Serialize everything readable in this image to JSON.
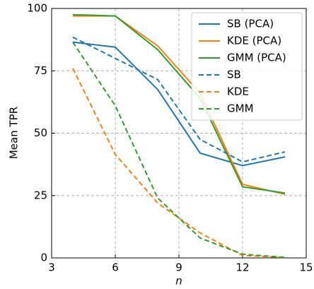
{
  "chart_data": {
    "type": "line",
    "xlabel": "n",
    "ylabel": "Mean TPR",
    "x": [
      4,
      6,
      8,
      10,
      12,
      14
    ],
    "series": [
      {
        "name": "SB (PCA)",
        "color": "#1f77b4",
        "linestyle": "solid",
        "values": [
          86.5,
          84.5,
          67.5,
          42,
          37,
          40.5
        ]
      },
      {
        "name": "KDE (PCA)",
        "color": "#ff7f0e",
        "linestyle": "solid",
        "values": [
          97,
          97,
          85,
          66,
          29.5,
          25.5
        ]
      },
      {
        "name": "GMM (PCA)",
        "color": "#2ca02c",
        "linestyle": "solid",
        "values": [
          97.5,
          97,
          83.5,
          64,
          28.5,
          26
        ]
      },
      {
        "name": "SB",
        "color": "#1f77b4",
        "linestyle": "dashed",
        "values": [
          88.5,
          80,
          71.5,
          47.5,
          38.5,
          42.5
        ]
      },
      {
        "name": "KDE",
        "color": "#ff7f0e",
        "linestyle": "dashed",
        "values": [
          76,
          41.5,
          22,
          10,
          1,
          0.2
        ]
      },
      {
        "name": "GMM",
        "color": "#2ca02c",
        "linestyle": "dashed",
        "values": [
          86.5,
          61,
          24,
          8,
          1.5,
          0.2
        ]
      }
    ],
    "xlim": [
      3,
      15
    ],
    "xticks": [
      3,
      6,
      9,
      12,
      15
    ],
    "ylim": [
      0,
      100
    ],
    "yticks": [
      0,
      25,
      50,
      75,
      100
    ],
    "grid": true,
    "legend": "upper right"
  }
}
